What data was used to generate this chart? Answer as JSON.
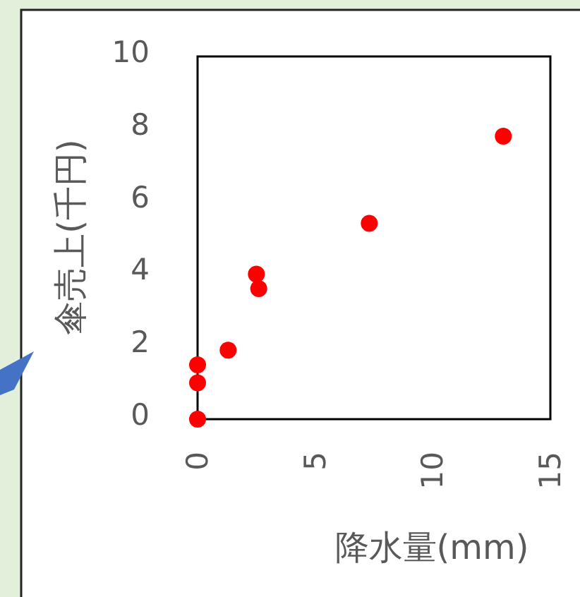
{
  "chart_data": {
    "type": "scatter",
    "xlabel": "降水量(mm)",
    "ylabel": "傘売上(千円)",
    "x": [
      0,
      0,
      0,
      1.3,
      2.5,
      2.6,
      7.3,
      13
    ],
    "series": [
      {
        "color": "#ff0000",
        "values": [
          0,
          1,
          1.5,
          1.9,
          4.0,
          3.6,
          5.4,
          7.8
        ]
      }
    ],
    "xlim": [
      0,
      15
    ],
    "ylim": [
      0,
      10
    ],
    "xticks": [
      0,
      5,
      10,
      15
    ],
    "yticks": [
      0,
      2,
      4,
      6,
      8,
      10
    ],
    "marker": "circle",
    "grid": false
  }
}
